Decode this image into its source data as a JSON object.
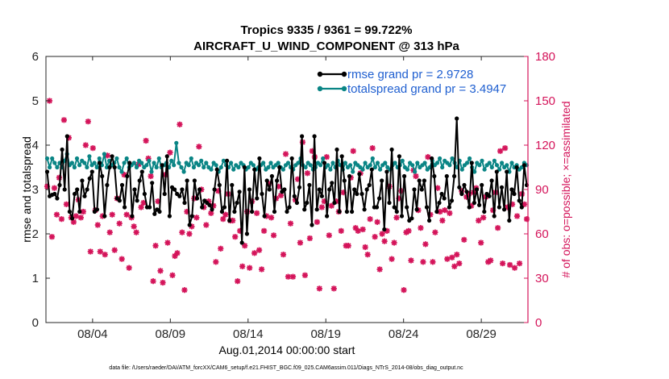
{
  "chart_data": {
    "type": "line",
    "title_line1": "Tropics 9335 / 9361 = 99.722%",
    "title_line2": "AIRCRAFT_U_WIND_COMPONENT @ 313 hPa",
    "ylabel_left": "rmse and totalspread",
    "ylabel_right": "# of obs: o=possible; ×=assimilated",
    "xlabel": "Aug.01,2014 00:00:00 start",
    "footnote": "data file: /Users/raeder/DAI/ATM_forcXX/CAM6_setup/f.e21.FHIST_BGC.f09_025.CAM6assim.011/Diags_NTrS_2014-08/obs_diag_output.nc",
    "ylim_left": [
      0,
      6
    ],
    "ylim_right": [
      0,
      180
    ],
    "xlim": [
      1.0,
      32.0
    ],
    "left_ticks": [
      "0",
      "1",
      "2",
      "3",
      "4",
      "5",
      "6"
    ],
    "right_ticks": [
      "0",
      "30",
      "60",
      "90",
      "120",
      "150",
      "180"
    ],
    "x_ticks": [
      {
        "day": 4,
        "label": "08/04"
      },
      {
        "day": 9,
        "label": "08/09"
      },
      {
        "day": 14,
        "label": "08/14"
      },
      {
        "day": 19,
        "label": "08/19"
      },
      {
        "day": 24,
        "label": "08/24"
      },
      {
        "day": 29,
        "label": "08/29"
      }
    ],
    "colors": {
      "rmse": "#000000",
      "spread": "#0a8585",
      "obs": "#d4145a",
      "right_axis": "#d4145a",
      "legend_text": "#1f5fd0"
    },
    "series": [
      {
        "name": "rmse grand pr = 2.9728",
        "key": "rmse",
        "values": [
          3.4,
          2.85,
          2.88,
          2.9,
          2.8,
          3.1,
          3.9,
          3.0,
          4.2,
          2.5,
          2.35,
          2.9,
          3.0,
          2.5,
          3.2,
          2.85,
          3.0,
          3.25,
          3.4,
          2.5,
          2.55,
          3.6,
          3.3,
          2.4,
          3.1,
          3.5,
          3.75,
          3.5,
          2.8,
          2.75,
          3.1,
          2.6,
          3.3,
          3.6,
          2.4,
          3.0,
          2.75,
          3.2,
          3.4,
          2.9,
          2.6,
          2.6,
          3.15,
          2.45,
          2.55,
          2.5,
          3.55,
          2.9,
          3.75,
          2.4,
          3.05,
          3.0,
          2.9,
          2.85,
          3.0,
          2.7,
          3.2,
          2.2,
          2.4,
          3.2,
          2.8,
          3.0,
          2.6,
          2.75,
          2.7,
          2.65,
          2.55,
          3.0,
          3.45,
          3.1,
          2.5,
          2.6,
          3.65,
          2.3,
          3.1,
          2.5,
          2.7,
          2.95,
          1.8,
          3.5,
          2.0,
          3.0,
          2.5,
          3.45,
          2.8,
          3.7,
          2.9,
          2.4,
          3.2,
          3.0,
          3.3,
          2.5,
          3.2,
          3.5,
          2.95,
          3.0,
          2.5,
          2.6,
          3.7,
          2.85,
          2.7,
          3.05,
          4.2,
          2.55,
          2.7,
          3.1,
          2.2,
          4.2,
          2.55,
          3.0,
          2.85,
          3.6,
          2.4,
          3.0,
          3.15,
          2.7,
          3.9,
          2.5,
          3.75,
          3.2,
          2.5,
          3.3,
          2.5,
          3.0,
          2.9,
          3.35,
          2.9,
          2.55,
          3.0,
          3.1,
          3.45,
          2.6,
          2.6,
          2.8,
          3.2,
          2.1,
          3.4,
          2.7,
          3.9,
          2.6,
          2.5,
          3.75,
          2.4,
          3.3,
          2.6,
          2.3,
          2.35,
          3.0,
          2.55,
          3.2,
          3.0,
          3.2,
          2.6,
          2.3,
          3.7,
          3.3,
          2.5,
          2.7,
          2.9,
          2.8,
          3.3,
          2.6,
          2.75,
          3.3,
          4.6,
          3.05,
          2.9,
          3.1,
          2.95,
          2.6,
          3.6,
          2.7,
          3.0,
          2.65,
          3.1,
          2.5,
          2.9,
          2.85,
          3.2,
          2.4,
          3.4,
          2.6,
          3.05,
          2.55,
          3.4,
          2.3,
          3.0,
          2.9,
          3.5,
          2.75,
          2.6,
          3.55,
          3.1
        ]
      },
      {
        "name": "totalspread grand pr = 3.4947",
        "key": "spread",
        "values": [
          3.7,
          3.5,
          3.7,
          3.6,
          3.5,
          3.6,
          3.5,
          3.65,
          3.8,
          3.55,
          3.6,
          3.5,
          3.7,
          3.55,
          3.65,
          3.6,
          3.5,
          3.75,
          3.55,
          3.6,
          3.5,
          3.7,
          3.55,
          3.8,
          3.5,
          3.65,
          3.55,
          3.6,
          3.7,
          3.5,
          3.4,
          3.6,
          3.7,
          3.5,
          3.55,
          3.6,
          3.5,
          3.65,
          3.6,
          3.5,
          3.55,
          3.65,
          3.4,
          3.6,
          3.5,
          3.7,
          3.5,
          3.55,
          3.6,
          3.5,
          3.65,
          3.55,
          4.05,
          3.6,
          3.5,
          3.4,
          3.6,
          3.55,
          3.7,
          3.5,
          3.6,
          3.55,
          3.65,
          3.5,
          3.6,
          3.5,
          3.45,
          3.6,
          3.55,
          3.4,
          3.5,
          3.65,
          3.55,
          3.5,
          3.6,
          3.45,
          3.55,
          3.5,
          3.6,
          3.55,
          3.45,
          3.5,
          3.6,
          3.55,
          3.45,
          3.5,
          3.55,
          3.6,
          3.45,
          3.5,
          3.6,
          3.5,
          3.55,
          3.6,
          3.5,
          3.45,
          3.55,
          3.6,
          3.5,
          3.45,
          3.55,
          3.6,
          3.7,
          3.55,
          3.5,
          3.6,
          3.55,
          3.45,
          3.5,
          3.6,
          3.55,
          3.7,
          3.5,
          3.55,
          3.45,
          3.6,
          3.5,
          3.65,
          3.55,
          3.45,
          3.6,
          3.5,
          3.55,
          3.4,
          3.6,
          3.55,
          3.5,
          3.45,
          3.6,
          3.5,
          3.55,
          3.7,
          3.5,
          3.6,
          3.45,
          3.55,
          3.6,
          3.5,
          3.45,
          3.55,
          3.6,
          3.5,
          3.55,
          3.65,
          3.5,
          3.45,
          3.6,
          3.55,
          3.4,
          3.6,
          3.5,
          3.55,
          3.6,
          3.45,
          3.5,
          3.65,
          3.55,
          3.6,
          3.7,
          3.5,
          3.65,
          3.6,
          3.55,
          3.7,
          3.6,
          3.5,
          3.65,
          3.45,
          3.55,
          3.6,
          3.7,
          3.5,
          3.4,
          3.6,
          3.55,
          3.65,
          3.45,
          3.55,
          3.6,
          3.5,
          3.65,
          3.55,
          3.45,
          3.6,
          3.5,
          3.55,
          3.4,
          3.6,
          3.5,
          3.55,
          3.45,
          3.5,
          3.6,
          3.55
        ]
      }
    ],
    "obs_count": {
      "name": "number of observations (right axis)",
      "values": [
        92,
        150,
        58,
        91,
        73,
        98,
        70,
        137,
        80,
        125,
        71,
        68,
        72,
        83,
        71,
        75,
        120,
        136,
        48,
        118,
        76,
        66,
        48,
        72,
        46,
        113,
        61,
        73,
        49,
        84,
        67,
        43,
        100,
        73,
        37,
        71,
        65,
        61,
        107,
        78,
        81,
        123,
        111,
        99,
        28,
        52,
        82,
        35,
        27,
        100,
        54,
        115,
        32,
        45,
        47,
        134,
        61,
        22,
        75,
        60,
        65,
        84,
        71,
        119,
        90,
        78,
        66,
        82,
        74,
        79,
        41,
        89,
        50,
        70,
        73,
        87,
        69,
        69,
        58,
        28,
        62,
        38,
        52,
        75,
        37,
        82,
        47,
        74,
        49,
        36,
        62,
        72,
        94,
        71,
        59,
        84,
        92,
        86,
        46,
        114,
        31,
        67,
        31,
        83,
        97,
        54,
        122,
        32,
        101,
        57,
        116,
        112,
        68,
        23,
        78,
        82,
        112,
        59,
        79,
        23,
        82,
        75,
        62,
        88,
        52,
        52,
        98,
        116,
        64,
        62,
        101,
        63,
        51,
        46,
        70,
        118,
        58,
        68,
        36,
        60,
        55,
        62,
        92,
        43,
        54,
        71,
        84,
        89,
        22,
        61,
        62,
        42,
        103,
        99,
        76,
        64,
        41,
        53,
        112,
        73,
        41,
        61,
        91,
        75,
        69,
        76,
        43,
        74,
        44,
        38,
        46,
        40,
        89,
        56,
        85,
        87,
        79,
        88,
        91,
        69,
        54,
        71,
        85,
        41,
        42,
        76,
        88,
        64,
        116,
        40,
        118,
        78,
        39,
        80,
        37,
        72,
        40,
        87,
        80,
        70
      ]
    },
    "legend": {
      "location": "top-right"
    }
  }
}
